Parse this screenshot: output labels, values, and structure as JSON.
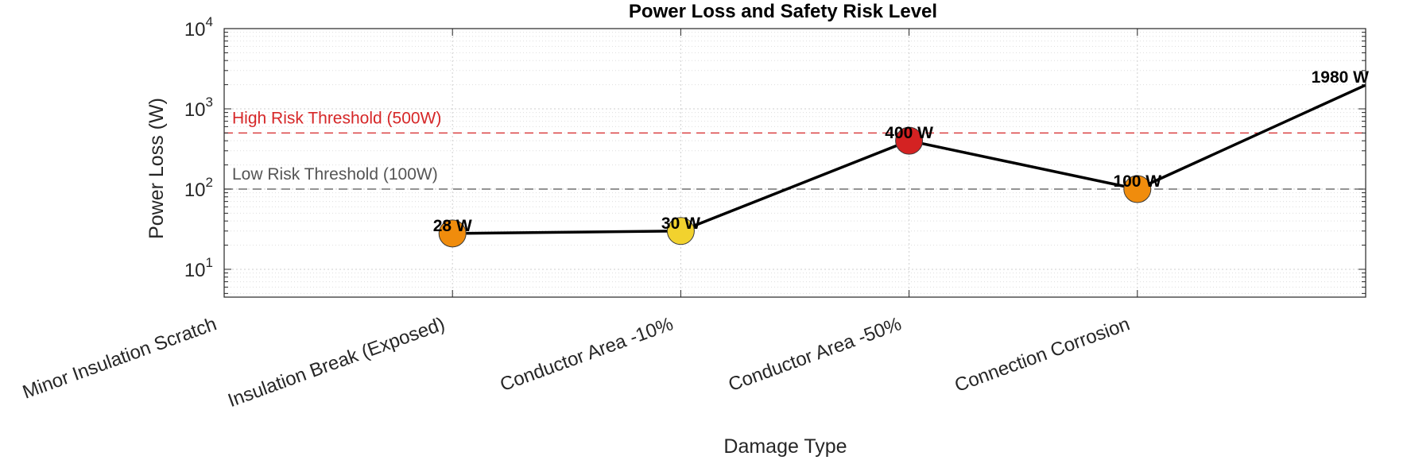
{
  "chart_data": {
    "type": "line",
    "title": "Power Loss and Safety Risk Level",
    "xlabel": "Damage Type",
    "ylabel": "Power Loss (W)",
    "yscale": "log",
    "ylim": [
      4.5,
      10000
    ],
    "y_ticks": [
      {
        "value": 10,
        "base": "10",
        "exp": "1"
      },
      {
        "value": 100,
        "base": "10",
        "exp": "2"
      },
      {
        "value": 1000,
        "base": "10",
        "exp": "3"
      },
      {
        "value": 10000,
        "base": "10",
        "exp": "4"
      }
    ],
    "categories": [
      "Minor Insulation Scratch",
      "Insulation Break (Exposed)",
      "Conductor Area -10%",
      "Conductor Area -50%",
      "Connection Corrosion"
    ],
    "points": [
      {
        "position": 2,
        "value": 28,
        "label": "28 W",
        "color": "#f08c0c"
      },
      {
        "position": 3,
        "value": 30,
        "label": "30 W",
        "color": "#f2d22e"
      },
      {
        "position": 4,
        "value": 400,
        "label": "400 W",
        "color": "#d42222"
      },
      {
        "position": 5,
        "value": 100,
        "label": "100 W",
        "color": "#f08c0c"
      },
      {
        "position": 6,
        "value": 1980,
        "label": "1980 W",
        "color": null
      }
    ],
    "thresholds": [
      {
        "value": 500,
        "label": "High Risk Threshold (500W)",
        "color": "#d62728"
      },
      {
        "value": 100,
        "label": "Low Risk Threshold (100W)",
        "color": "#555555"
      }
    ],
    "grid": true,
    "line_color": "#000000"
  }
}
